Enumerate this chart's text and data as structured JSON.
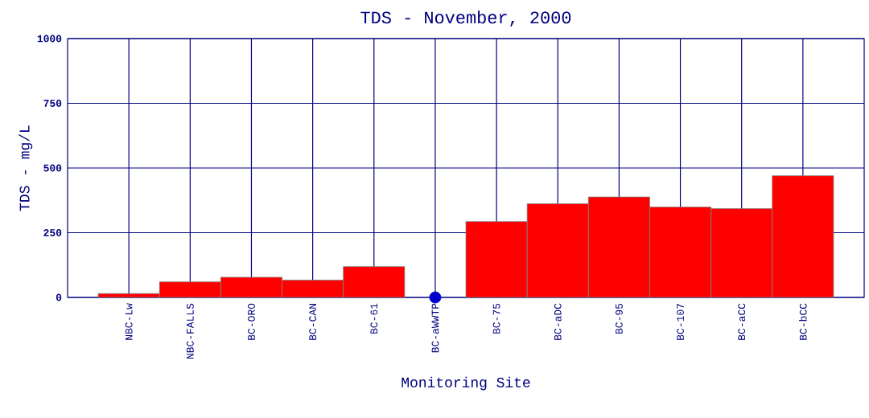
{
  "chart_data": {
    "type": "bar",
    "title": "TDS - November, 2000",
    "xlabel": "Monitoring Site",
    "ylabel": "TDS - mg/L",
    "categories": [
      "NBC-Lw",
      "NBC-FALLS",
      "BC-ORO",
      "BC-CAN",
      "BC-61",
      "BC-aWWTP",
      "BC-75",
      "BC-aDC",
      "BC-95",
      "BC-107",
      "BC-aCC",
      "BC-bCC"
    ],
    "series": [
      {
        "type": "bar",
        "color": "#ff0000",
        "values": [
          15,
          60,
          78,
          67,
          119,
          null,
          293,
          362,
          388,
          349,
          343,
          470
        ]
      },
      {
        "type": "scatter",
        "color": "#0000cc",
        "x": [
          "BC-aWWTP"
        ],
        "values": [
          0
        ]
      }
    ],
    "ylim": [
      0,
      1000
    ],
    "yticks": [
      0,
      250,
      500,
      750,
      1000
    ],
    "grid": true,
    "marker": "circle"
  }
}
